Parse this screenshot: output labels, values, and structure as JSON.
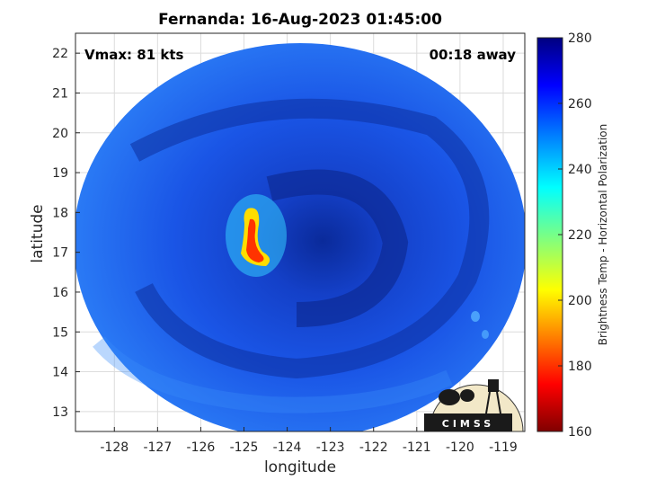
{
  "title": "Fernanda: 16-Aug-2023 01:45:00",
  "vmax_label": "Vmax: 81 kts",
  "time_offset_label": "00:18 away",
  "xlabel": "longitude",
  "ylabel": "latitude",
  "colorbar": {
    "label": "Brightness Temp - Horizontal Polarization",
    "min": 160,
    "max": 280,
    "ticks": [
      "280",
      "260",
      "240",
      "220",
      "200",
      "180",
      "160"
    ],
    "colors": [
      "#800000",
      "#ff0000",
      "#ffff00",
      "#00ffff",
      "#0000ff",
      "#000080"
    ]
  },
  "map": {
    "x_ticks": [
      "-128",
      "-127",
      "-126",
      "-125",
      "-124",
      "-123",
      "-122",
      "-121",
      "-120",
      "-119"
    ],
    "y_ticks": [
      "22",
      "21",
      "20",
      "19",
      "18",
      "17",
      "16",
      "15",
      "14",
      "13"
    ],
    "xlim": [
      -128.9,
      -118.5
    ],
    "ylim": [
      12.5,
      22.5
    ],
    "grid": true,
    "swath_fill_color": "#1a55e6"
  },
  "logo": {
    "text": "CIMSS"
  }
}
